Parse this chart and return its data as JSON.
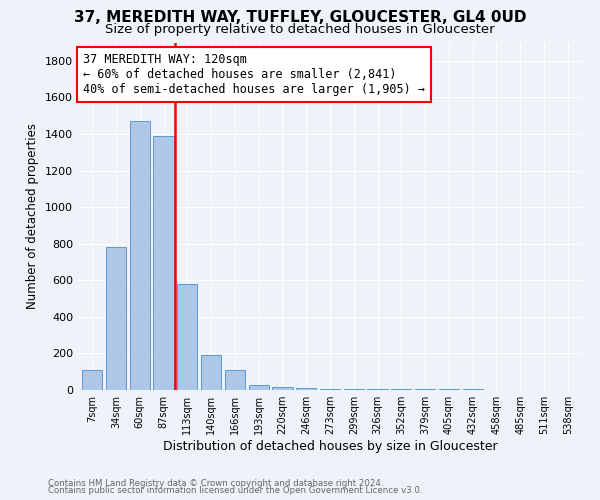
{
  "title": "37, MEREDITH WAY, TUFFLEY, GLOUCESTER, GL4 0UD",
  "subtitle": "Size of property relative to detached houses in Gloucester",
  "xlabel": "Distribution of detached houses by size in Gloucester",
  "ylabel": "Number of detached properties",
  "categories": [
    "7sqm",
    "34sqm",
    "60sqm",
    "87sqm",
    "113sqm",
    "140sqm",
    "166sqm",
    "193sqm",
    "220sqm",
    "246sqm",
    "273sqm",
    "299sqm",
    "326sqm",
    "352sqm",
    "379sqm",
    "405sqm",
    "432sqm",
    "458sqm",
    "485sqm",
    "511sqm",
    "538sqm"
  ],
  "values": [
    110,
    780,
    1470,
    1390,
    580,
    190,
    110,
    30,
    15,
    10,
    8,
    6,
    5,
    4,
    4,
    3,
    3,
    2,
    2,
    2,
    2
  ],
  "bar_color": "#aec6e8",
  "bar_edge_color": "#5b9bd5",
  "annotation_text": "37 MEREDITH WAY: 120sqm\n← 60% of detached houses are smaller (2,841)\n40% of semi-detached houses are larger (1,905) →",
  "annotation_box_color": "white",
  "annotation_box_edge_color": "red",
  "vline_color": "red",
  "vline_x": 3.5,
  "ylim": [
    0,
    1900
  ],
  "yticks": [
    0,
    200,
    400,
    600,
    800,
    1000,
    1200,
    1400,
    1600,
    1800
  ],
  "footnote1": "Contains HM Land Registry data © Crown copyright and database right 2024.",
  "footnote2": "Contains public sector information licensed under the Open Government Licence v3.0.",
  "background_color": "#eef2f9",
  "grid_color": "white",
  "title_fontsize": 11,
  "subtitle_fontsize": 9.5,
  "annot_fontsize": 8.5,
  "xlabel_fontsize": 9,
  "ylabel_fontsize": 8.5
}
